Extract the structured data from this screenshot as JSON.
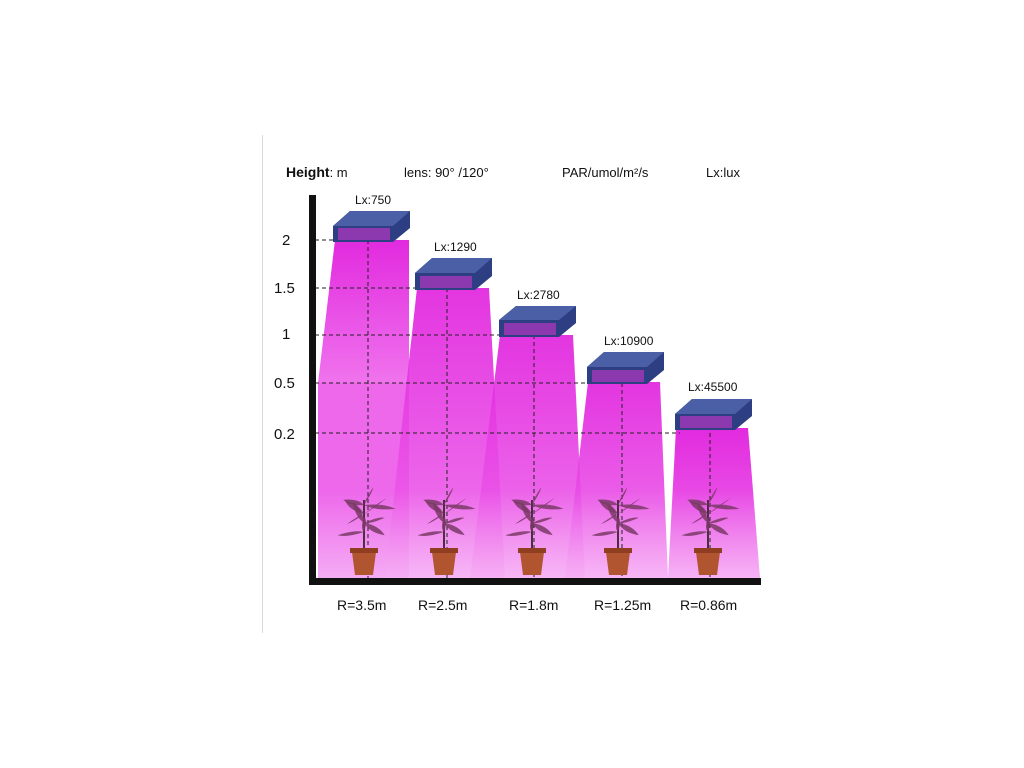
{
  "header": {
    "height_label": "Height",
    "height_unit": ": m",
    "lens": "lens: 90° /120°",
    "par": "PAR/umol/m²/s",
    "lx": "Lx:lux"
  },
  "y_ticks": [
    "2",
    "1.5",
    "1",
    "0.5",
    "0.2"
  ],
  "lights": [
    {
      "lx": "Lx:750",
      "radius": "R=3.5m"
    },
    {
      "lx": "Lx:1290",
      "radius": "R=2.5m"
    },
    {
      "lx": "Lx:2780",
      "radius": "R=1.8m"
    },
    {
      "lx": "Lx:10900",
      "radius": "R=1.25m"
    },
    {
      "lx": "Lx:45500",
      "radius": "R=0.86m"
    }
  ],
  "colors": {
    "beam": "#e21be0",
    "beam_light": "#f6b8f5",
    "fixture": "#2c3e7e",
    "axis": "#111111"
  },
  "icons": [
    "led-grow-light-icon",
    "plant-pot-icon"
  ]
}
